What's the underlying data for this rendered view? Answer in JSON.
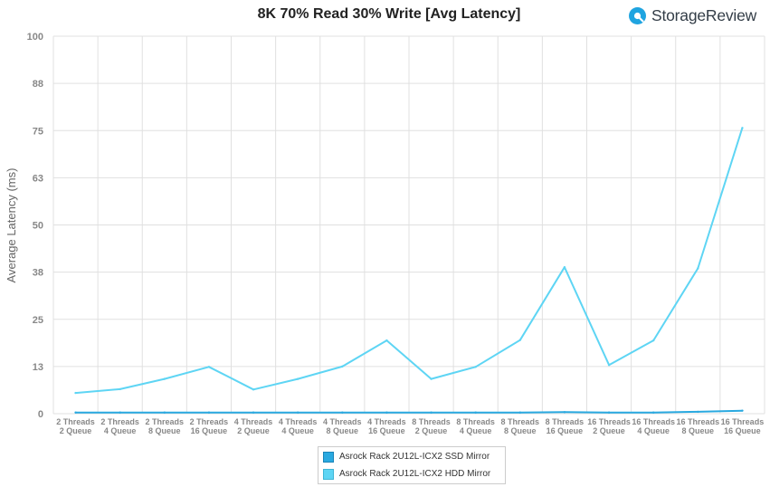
{
  "brand": {
    "name": "StorageReview",
    "logo_icon": "storagereview-logo-icon",
    "logo_color": "#1fa4e0"
  },
  "chart_data": {
    "type": "line",
    "title": "8K 70% Read 30% Write [Avg Latency]",
    "xlabel": "",
    "ylabel": "Average Latency  (ms)",
    "ylim": [
      0,
      100
    ],
    "yticks": [
      "0",
      "13",
      "25",
      "38",
      "50",
      "63",
      "75",
      "88",
      "100"
    ],
    "grid": true,
    "legend_position": "bottom",
    "categories": [
      [
        "2 Threads",
        "2 Queue"
      ],
      [
        "2 Threads",
        "4 Queue"
      ],
      [
        "2 Threads",
        "8 Queue"
      ],
      [
        "2 Threads",
        "16 Queue"
      ],
      [
        "4 Threads",
        "2 Queue"
      ],
      [
        "4 Threads",
        "4 Queue"
      ],
      [
        "4 Threads",
        "8 Queue"
      ],
      [
        "4 Threads",
        "16 Queue"
      ],
      [
        "8 Threads",
        "2 Queue"
      ],
      [
        "8 Threads",
        "4 Queue"
      ],
      [
        "8 Threads",
        "8 Queue"
      ],
      [
        "8 Threads",
        "16 Queue"
      ],
      [
        "16 Threads",
        "2 Queue"
      ],
      [
        "16 Threads",
        "4 Queue"
      ],
      [
        "16 Threads",
        "8 Queue"
      ],
      [
        "16 Threads",
        "16 Queue"
      ]
    ],
    "series": [
      {
        "name": "Asrock Rack 2U12L-ICX2 SSD Mirror",
        "color": "#29a9e0",
        "values": [
          0.3,
          0.3,
          0.3,
          0.3,
          0.3,
          0.3,
          0.3,
          0.3,
          0.3,
          0.3,
          0.3,
          0.4,
          0.3,
          0.3,
          0.5,
          0.8
        ]
      },
      {
        "name": "Asrock Rack 2U12L-ICX2 HDD Mirror",
        "color": "#5ed5f4",
        "values": [
          5.5,
          6.5,
          9.2,
          12.4,
          6.4,
          9.2,
          12.5,
          19.4,
          9.2,
          12.4,
          19.5,
          38.8,
          12.9,
          19.4,
          38.5,
          75.7
        ]
      }
    ]
  }
}
